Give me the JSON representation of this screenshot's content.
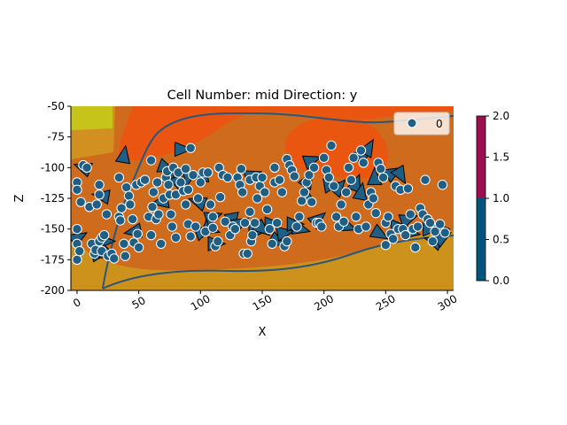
{
  "chart_data": {
    "type": "scatter",
    "title": "Cell Number: mid Direction: y",
    "xlabel": "X",
    "ylabel": "Z",
    "xlim": [
      -5,
      305
    ],
    "ylim": [
      -200,
      -50
    ],
    "xticks": [
      0,
      50,
      100,
      150,
      200,
      250,
      300
    ],
    "yticks": [
      -50,
      -75,
      -100,
      -125,
      -150,
      -175,
      -200
    ],
    "legend": {
      "entries": [
        "0"
      ],
      "location": "top-right"
    },
    "colorbar": {
      "ticks": [
        "0.0",
        "0.5",
        "1.0",
        "1.5",
        "2.0"
      ],
      "range": [
        0,
        2
      ],
      "colors": [
        {
          "from": 0,
          "to": 1,
          "color": "#01547c"
        },
        {
          "from": 1,
          "to": 2,
          "color": "#9b0f4e"
        }
      ]
    },
    "colors": {
      "points": "#1f5f86",
      "orientations": "#1f5f86",
      "contour_line": "#2b557a",
      "field_orange": "#ea5512",
      "field_brown": "#cf6b1c",
      "field_gold": "#cd921c",
      "field_yellow": "#c6c41a"
    },
    "points": [
      [
        0,
        -112
      ],
      [
        0,
        -118
      ],
      [
        3,
        -128
      ],
      [
        0,
        -150
      ],
      [
        0,
        -162
      ],
      [
        0,
        -175
      ],
      [
        2,
        -168
      ],
      [
        5,
        -98
      ],
      [
        8,
        -100
      ],
      [
        10,
        -132
      ],
      [
        12,
        -162
      ],
      [
        14,
        -170
      ],
      [
        15,
        -167
      ],
      [
        16,
        -130
      ],
      [
        18,
        -122
      ],
      [
        18,
        -114
      ],
      [
        18,
        -160
      ],
      [
        20,
        -157
      ],
      [
        20,
        -168
      ],
      [
        22,
        -155
      ],
      [
        24,
        -138
      ],
      [
        25,
        -172
      ],
      [
        28,
        -170
      ],
      [
        30,
        -174
      ],
      [
        34,
        -108
      ],
      [
        34,
        -140
      ],
      [
        35,
        -143
      ],
      [
        36,
        -133
      ],
      [
        38,
        -162
      ],
      [
        39,
        -172
      ],
      [
        40,
        -116
      ],
      [
        42,
        -123
      ],
      [
        43,
        -130
      ],
      [
        45,
        -142
      ],
      [
        46,
        -161
      ],
      [
        48,
        -114
      ],
      [
        49,
        -154
      ],
      [
        50,
        -165
      ],
      [
        52,
        -112
      ],
      [
        55,
        -110
      ],
      [
        58,
        -140
      ],
      [
        60,
        -94
      ],
      [
        60,
        -155
      ],
      [
        61,
        -132
      ],
      [
        62,
        -120
      ],
      [
        64,
        -142
      ],
      [
        65,
        -112
      ],
      [
        66,
        -138
      ],
      [
        68,
        -162
      ],
      [
        70,
        -125
      ],
      [
        72,
        -108
      ],
      [
        73,
        -103
      ],
      [
        74,
        -114
      ],
      [
        75,
        -122
      ],
      [
        76,
        -138
      ],
      [
        77,
        -148
      ],
      [
        78,
        -100
      ],
      [
        80,
        -122
      ],
      [
        80,
        -157
      ],
      [
        82,
        -104
      ],
      [
        84,
        -112
      ],
      [
        86,
        -119
      ],
      [
        88,
        -101
      ],
      [
        88,
        -130
      ],
      [
        90,
        -146
      ],
      [
        90,
        -118
      ],
      [
        92,
        -84
      ],
      [
        92,
        -156
      ],
      [
        94,
        -106
      ],
      [
        96,
        -148
      ],
      [
        98,
        -125
      ],
      [
        100,
        -112
      ],
      [
        102,
        -104
      ],
      [
        104,
        -152
      ],
      [
        106,
        -104
      ],
      [
        108,
        -130
      ],
      [
        110,
        -140
      ],
      [
        110,
        -149
      ],
      [
        112,
        -164
      ],
      [
        114,
        -160
      ],
      [
        115,
        -100
      ],
      [
        116,
        -124
      ],
      [
        118,
        -106
      ],
      [
        120,
        -144
      ],
      [
        122,
        -108
      ],
      [
        124,
        -155
      ],
      [
        126,
        -148
      ],
      [
        128,
        -150
      ],
      [
        130,
        -108
      ],
      [
        132,
        -114
      ],
      [
        133,
        -101
      ],
      [
        134,
        -120
      ],
      [
        135,
        -170
      ],
      [
        136,
        -145
      ],
      [
        138,
        -170
      ],
      [
        140,
        -110
      ],
      [
        140,
        -136
      ],
      [
        141,
        -160
      ],
      [
        142,
        -155
      ],
      [
        144,
        -145
      ],
      [
        145,
        -108
      ],
      [
        146,
        -125
      ],
      [
        148,
        -115
      ],
      [
        150,
        -108
      ],
      [
        152,
        -120
      ],
      [
        154,
        -134
      ],
      [
        156,
        -150
      ],
      [
        158,
        -162
      ],
      [
        160,
        -112
      ],
      [
        160,
        -100
      ],
      [
        162,
        -145
      ],
      [
        164,
        -110
      ],
      [
        166,
        -120
      ],
      [
        168,
        -164
      ],
      [
        170,
        -160
      ],
      [
        170,
        -93
      ],
      [
        172,
        -98
      ],
      [
        174,
        -102
      ],
      [
        176,
        -107
      ],
      [
        178,
        -148
      ],
      [
        180,
        -140
      ],
      [
        182,
        -127
      ],
      [
        184,
        -120
      ],
      [
        186,
        -112
      ],
      [
        188,
        -106
      ],
      [
        190,
        -128
      ],
      [
        192,
        -100
      ],
      [
        194,
        -145
      ],
      [
        196,
        -145
      ],
      [
        198,
        -148
      ],
      [
        200,
        -92
      ],
      [
        202,
        -102
      ],
      [
        204,
        -108
      ],
      [
        206,
        -82
      ],
      [
        208,
        -115
      ],
      [
        210,
        -140
      ],
      [
        212,
        -148
      ],
      [
        214,
        -130
      ],
      [
        216,
        -144
      ],
      [
        218,
        -120
      ],
      [
        220,
        -100
      ],
      [
        222,
        -110
      ],
      [
        224,
        -92
      ],
      [
        226,
        -140
      ],
      [
        228,
        -150
      ],
      [
        230,
        -86
      ],
      [
        232,
        -96
      ],
      [
        234,
        -148
      ],
      [
        236,
        -130
      ],
      [
        238,
        -120
      ],
      [
        240,
        -125
      ],
      [
        242,
        -137
      ],
      [
        244,
        -96
      ],
      [
        246,
        -101
      ],
      [
        248,
        -108
      ],
      [
        250,
        -145
      ],
      [
        250,
        -163
      ],
      [
        252,
        -140
      ],
      [
        254,
        -154
      ],
      [
        256,
        -158
      ],
      [
        258,
        -115
      ],
      [
        260,
        -150
      ],
      [
        262,
        -118
      ],
      [
        264,
        -150
      ],
      [
        266,
        -155
      ],
      [
        268,
        -117
      ],
      [
        270,
        -138
      ],
      [
        272,
        -150
      ],
      [
        274,
        -165
      ],
      [
        276,
        -148
      ],
      [
        278,
        -133
      ],
      [
        280,
        -138
      ],
      [
        282,
        -110
      ],
      [
        284,
        -142
      ],
      [
        286,
        -145
      ],
      [
        288,
        -160
      ],
      [
        290,
        -152
      ],
      [
        294,
        -146
      ],
      [
        296,
        -114
      ],
      [
        298,
        -153
      ]
    ],
    "orientations": [
      [
        1,
        -157,
        -30
      ],
      [
        5,
        -100,
        200
      ],
      [
        18,
        -170,
        -10
      ],
      [
        20,
        -123,
        190
      ],
      [
        23,
        -160,
        0
      ],
      [
        25,
        -170,
        20
      ],
      [
        38,
        -90,
        -80
      ],
      [
        46,
        -152,
        170
      ],
      [
        68,
        -128,
        170
      ],
      [
        72,
        -100,
        20
      ],
      [
        75,
        -108,
        -60
      ],
      [
        82,
        -113,
        70
      ],
      [
        85,
        -85,
        0
      ],
      [
        90,
        -108,
        100
      ],
      [
        100,
        -107,
        170
      ],
      [
        98,
        -128,
        200
      ],
      [
        102,
        -152,
        -20
      ],
      [
        108,
        -150,
        20
      ],
      [
        110,
        -140,
        -20
      ],
      [
        112,
        -162,
        0
      ],
      [
        126,
        -143,
        80
      ],
      [
        132,
        -145,
        -30
      ],
      [
        142,
        -106,
        -20
      ],
      [
        145,
        -152,
        0
      ],
      [
        150,
        -150,
        40
      ],
      [
        158,
        -146,
        0
      ],
      [
        162,
        -160,
        30
      ],
      [
        168,
        -153,
        -10
      ],
      [
        176,
        -146,
        0
      ],
      [
        181,
        -150,
        15
      ],
      [
        185,
        -122,
        -100
      ],
      [
        187,
        -110,
        -60
      ],
      [
        190,
        -94,
        -20
      ],
      [
        195,
        -142,
        -40
      ],
      [
        206,
        -114,
        -10
      ],
      [
        212,
        -116,
        -50
      ],
      [
        219,
        -148,
        20
      ],
      [
        226,
        -113,
        -70
      ],
      [
        230,
        -120,
        -80
      ],
      [
        232,
        -90,
        -30
      ],
      [
        236,
        -84,
        -60
      ],
      [
        241,
        -108,
        -90
      ],
      [
        245,
        -154,
        30
      ],
      [
        256,
        -104,
        -30
      ],
      [
        260,
        -148,
        0
      ],
      [
        262,
        -106,
        60
      ],
      [
        268,
        -142,
        -20
      ],
      [
        270,
        -153,
        10
      ],
      [
        286,
        -150,
        0
      ],
      [
        289,
        -160,
        200
      ],
      [
        294,
        -150,
        0
      ],
      [
        296,
        -157,
        -30
      ]
    ]
  }
}
